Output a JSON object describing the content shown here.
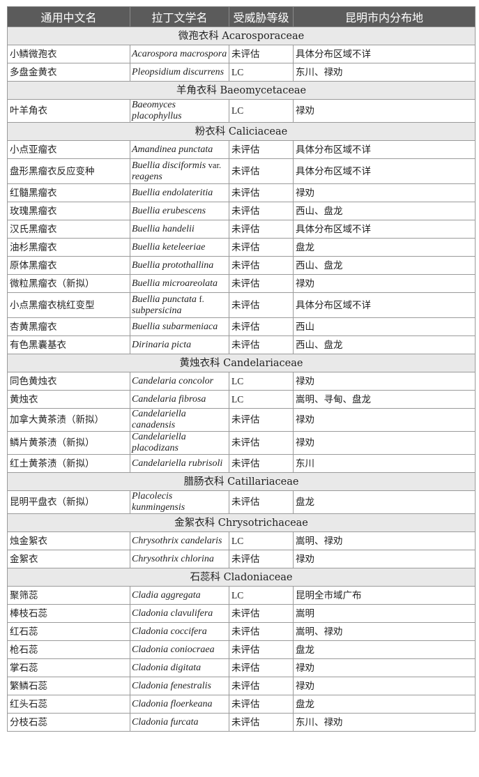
{
  "headers": [
    "通用中文名",
    "拉丁文学名",
    "受威胁等级",
    "昆明市内分布地"
  ],
  "groups": [
    {
      "family": "微孢衣科 Acarosporaceae",
      "rows": [
        [
          "小鳞微孢衣",
          "Acarospora macrospora",
          "未评估",
          "具体分布区域不详"
        ],
        [
          "多盘金黄衣",
          "Pleopsidium discurrens",
          "LC",
          "东川、禄劝"
        ]
      ]
    },
    {
      "family": "羊角衣科 Baeomycetaceae",
      "rows": [
        [
          "叶羊角衣",
          "Baeomyces placophyllus",
          "LC",
          "禄劝"
        ]
      ]
    },
    {
      "family": "粉衣科 Caliciaceae",
      "rows": [
        [
          "小点亚瘤衣",
          "Amandinea punctata",
          "未评估",
          "具体分布区域不详"
        ],
        [
          "盘形黑瘤衣反应变种",
          "Buellia disciformis|var.|reagens",
          "未评估",
          "具体分布区域不详"
        ],
        [
          "红髓黑瘤衣",
          "Buellia endolateritia",
          "未评估",
          "禄劝"
        ],
        [
          "玫瑰黑瘤衣",
          "Buellia erubescens",
          "未评估",
          "西山、盘龙"
        ],
        [
          "汉氏黑瘤衣",
          "Buellia handelii",
          "未评估",
          "具体分布区域不详"
        ],
        [
          "油杉黑瘤衣",
          "Buellia keteleeriae",
          "未评估",
          "盘龙"
        ],
        [
          "原体黑瘤衣",
          "Buellia protothallina",
          "未评估",
          "西山、盘龙"
        ],
        [
          "微粒黑瘤衣（新拟）",
          "Buellia microareolata",
          "未评估",
          "禄劝"
        ],
        [
          "小点黑瘤衣桃红变型",
          "Buellia punctata|f.|subpersicina",
          "未评估",
          "具体分布区域不详"
        ],
        [
          "杏黄黑瘤衣",
          "Buellia subarmeniaca",
          "未评估",
          "西山"
        ],
        [
          "有色黑囊基衣",
          "Dirinaria picta",
          "未评估",
          "西山、盘龙"
        ]
      ]
    },
    {
      "family": "黄烛衣科 Candelariaceae",
      "rows": [
        [
          "同色黄烛衣",
          "Candelaria concolor",
          "LC",
          "禄劝"
        ],
        [
          "黄烛衣",
          "Candelaria fibrosa",
          "LC",
          "嵩明、寻甸、盘龙"
        ],
        [
          "加拿大黄茶渍（新拟）",
          "Candelariella canadensis",
          "未评估",
          "禄劝"
        ],
        [
          "鳞片黄茶渍（新拟）",
          "Candelariella placodizans",
          "未评估",
          "禄劝"
        ],
        [
          "红土黄茶渍（新拟）",
          "Candelariella rubrisoli",
          "未评估",
          "东川"
        ]
      ]
    },
    {
      "family": "腊肠衣科 Catillariaceae",
      "rows": [
        [
          "昆明平盘衣（新拟）",
          "Placolecis kunmingensis",
          "未评估",
          "盘龙"
        ]
      ]
    },
    {
      "family": "金絮衣科 Chrysotrichaceae",
      "rows": [
        [
          "烛金絮衣",
          "Chrysothrix candelaris",
          "LC",
          "嵩明、禄劝"
        ],
        [
          "金絮衣",
          "Chrysothrix chlorina",
          "未评估",
          "禄劝"
        ]
      ]
    },
    {
      "family": "石蕊科 Cladoniaceae",
      "rows": [
        [
          "聚筛蕊",
          "Cladia aggregata",
          "LC",
          "昆明全市域广布"
        ],
        [
          "棒枝石蕊",
          "Cladonia clavulifera",
          "未评估",
          "嵩明"
        ],
        [
          "红石蕊",
          "Cladonia coccifera",
          "未评估",
          "嵩明、禄劝"
        ],
        [
          "枪石蕊",
          "Cladonia coniocraea",
          "未评估",
          "盘龙"
        ],
        [
          "掌石蕊",
          "Cladonia digitata",
          "未评估",
          "禄劝"
        ],
        [
          "繁鳞石蕊",
          "Cladonia fenestralis",
          "未评估",
          "禄劝"
        ],
        [
          "红头石蕊",
          "Cladonia floerkeana",
          "未评估",
          "盘龙"
        ],
        [
          "分枝石蕊",
          "Cladonia furcata",
          "未评估",
          "东川、禄劝"
        ]
      ]
    }
  ]
}
